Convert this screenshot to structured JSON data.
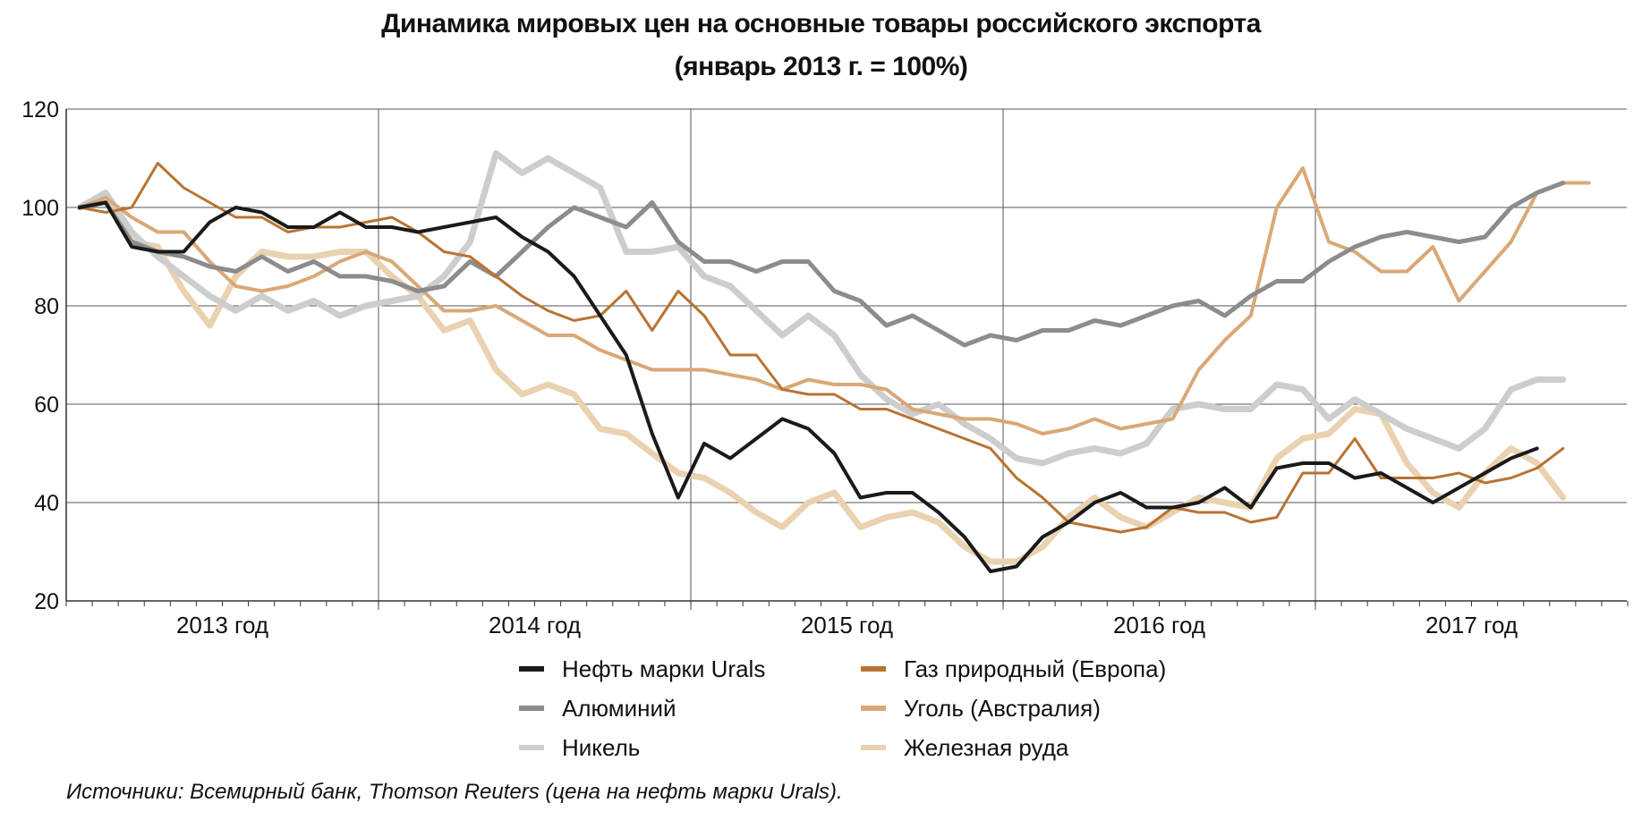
{
  "chart_data": {
    "type": "line",
    "title": "Динамика мировых цен на основные товары российского экспорта",
    "subtitle": "(январь 2013 г. = 100%)",
    "xlabel": "",
    "ylabel": "",
    "ylim": [
      20,
      120
    ],
    "yticks": [
      "20",
      "40",
      "60",
      "80",
      "100",
      "120"
    ],
    "year_labels": [
      "2013 год",
      "2014 год",
      "2015 год",
      "2016 год",
      "2017 год"
    ],
    "x_start": "2013-01",
    "grid": true,
    "legend_position": "bottom",
    "source": "Источники: Всемирный банк, Thomson Reuters (цена на нефть марки Urals).",
    "series": [
      {
        "name": "Нефть марки Urals",
        "color": "#1a1a1a",
        "width": 4,
        "values": [
          100,
          101,
          92,
          91,
          91,
          97,
          100,
          99,
          96,
          96,
          99,
          96,
          96,
          95,
          96,
          97,
          98,
          94,
          91,
          86,
          78,
          70,
          54,
          41,
          52,
          49,
          53,
          57,
          55,
          50,
          41,
          42,
          42,
          38,
          33,
          26,
          27,
          33,
          36,
          40,
          42,
          39,
          39,
          40,
          43,
          39,
          47,
          48,
          48,
          45,
          46,
          43,
          40,
          43,
          46,
          49,
          51
        ]
      },
      {
        "name": "Газ природный (Европа)",
        "color": "#b87333",
        "width": 3,
        "values": [
          100,
          99,
          100,
          109,
          104,
          101,
          98,
          98,
          95,
          96,
          96,
          97,
          98,
          95,
          91,
          90,
          86,
          82,
          79,
          77,
          78,
          83,
          75,
          83,
          78,
          70,
          70,
          63,
          62,
          62,
          59,
          59,
          57,
          55,
          53,
          51,
          45,
          41,
          36,
          35,
          34,
          35,
          39,
          38,
          38,
          36,
          37,
          46,
          46,
          53,
          45,
          45,
          45,
          46,
          44,
          45,
          47,
          51
        ]
      },
      {
        "name": "Алюминий",
        "color": "#8c8c8c",
        "width": 5,
        "values": [
          100,
          101,
          93,
          91,
          90,
          88,
          87,
          90,
          87,
          89,
          86,
          86,
          85,
          83,
          84,
          89,
          86,
          91,
          96,
          100,
          98,
          96,
          101,
          93,
          89,
          89,
          87,
          89,
          89,
          83,
          81,
          76,
          78,
          75,
          72,
          74,
          73,
          75,
          75,
          77,
          76,
          78,
          80,
          81,
          78,
          82,
          85,
          85,
          89,
          92,
          94,
          95,
          94,
          93,
          94,
          100,
          103,
          105
        ]
      },
      {
        "name": "Уголь (Австралия)",
        "color": "#d9a877",
        "width": 4,
        "values": [
          100,
          102,
          98,
          95,
          95,
          89,
          84,
          83,
          84,
          86,
          89,
          91,
          89,
          84,
          79,
          79,
          80,
          77,
          74,
          74,
          71,
          69,
          67,
          67,
          67,
          66,
          65,
          63,
          65,
          64,
          64,
          63,
          59,
          58,
          57,
          57,
          56,
          54,
          55,
          57,
          55,
          56,
          57,
          67,
          73,
          78,
          100,
          108,
          93,
          91,
          87,
          87,
          92,
          81,
          87,
          93,
          103,
          105,
          105
        ]
      },
      {
        "name": "Никель",
        "color": "#cdcdcd",
        "width": 7,
        "values": [
          100,
          103,
          95,
          90,
          86,
          82,
          79,
          82,
          79,
          81,
          78,
          80,
          81,
          82,
          86,
          93,
          111,
          107,
          110,
          107,
          104,
          91,
          91,
          92,
          86,
          84,
          79,
          74,
          78,
          74,
          66,
          61,
          58,
          60,
          56,
          53,
          49,
          48,
          50,
          51,
          50,
          52,
          59,
          60,
          59,
          59,
          64,
          63,
          57,
          61,
          58,
          55,
          53,
          51,
          55,
          63,
          65,
          65
        ]
      },
      {
        "name": "Железная руда",
        "color": "#ead2b0",
        "width": 7,
        "values": [
          100,
          103,
          93,
          92,
          83,
          76,
          86,
          91,
          90,
          90,
          91,
          91,
          86,
          82,
          75,
          77,
          67,
          62,
          64,
          62,
          55,
          54,
          50,
          46,
          45,
          42,
          38,
          35,
          40,
          42,
          35,
          37,
          38,
          36,
          31,
          28,
          28,
          31,
          37,
          41,
          37,
          35,
          38,
          41,
          40,
          39,
          49,
          53,
          54,
          59,
          58,
          48,
          42,
          39,
          46,
          51,
          48,
          41
        ]
      }
    ]
  }
}
